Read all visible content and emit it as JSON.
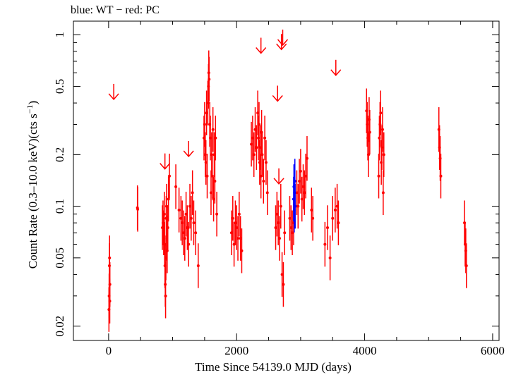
{
  "chart_data": {
    "type": "scatter",
    "title": "blue: WT − red: PC",
    "xlabel": "Time Since 54139.0 MJD (days)",
    "ylabel": "Count Rate (0.3–10.0 keV)(cts s",
    "ylabel_exp": "−1",
    "ylabel_tail": ")",
    "xlim": [
      -550,
      6100
    ],
    "ylim": [
      0.0165,
      1.2
    ],
    "yscale": "log",
    "x_ticks": [
      0,
      2000,
      4000,
      6000
    ],
    "x_tick_labels": [
      "0",
      "2000",
      "4000",
      "6000"
    ],
    "y_ticks": [
      1,
      0.5,
      0.2,
      0.1,
      0.05,
      0.02
    ],
    "y_tick_labels": [
      "1",
      "0.5",
      "0.2",
      "0.1",
      "0.05",
      "0.02"
    ],
    "colors": {
      "PC": "#ff0000",
      "WT": "#0000ff",
      "axes": "#000000"
    },
    "series": [
      {
        "name": "PC",
        "color": "#ff0000",
        "points": [
          [
            5,
            0.025
          ],
          [
            8,
            0.03
          ],
          [
            12,
            0.045
          ],
          [
            15,
            0.05
          ],
          [
            18,
            0.028
          ],
          [
            20,
            0.035
          ],
          [
            450,
            0.098
          ],
          [
            455,
            0.096
          ],
          [
            840,
            0.075
          ],
          [
            850,
            0.08
          ],
          [
            860,
            0.07
          ],
          [
            870,
            0.09
          ],
          [
            875,
            0.06
          ],
          [
            880,
            0.045
          ],
          [
            885,
            0.035
          ],
          [
            890,
            0.03
          ],
          [
            895,
            0.05
          ],
          [
            900,
            0.085
          ],
          [
            905,
            0.1
          ],
          [
            910,
            0.065
          ],
          [
            915,
            0.055
          ],
          [
            925,
            0.075
          ],
          [
            935,
            0.11
          ],
          [
            950,
            0.15
          ],
          [
            1050,
            0.13
          ],
          [
            1100,
            0.095
          ],
          [
            1130,
            0.085
          ],
          [
            1150,
            0.08
          ],
          [
            1170,
            0.07
          ],
          [
            1190,
            0.065
          ],
          [
            1210,
            0.09
          ],
          [
            1230,
            0.075
          ],
          [
            1250,
            0.06
          ],
          [
            1270,
            0.1
          ],
          [
            1290,
            0.085
          ],
          [
            1310,
            0.12
          ],
          [
            1330,
            0.08
          ],
          [
            1360,
            0.07
          ],
          [
            1400,
            0.045
          ],
          [
            1490,
            0.25
          ],
          [
            1500,
            0.3
          ],
          [
            1510,
            0.2
          ],
          [
            1520,
            0.18
          ],
          [
            1530,
            0.35
          ],
          [
            1540,
            0.15
          ],
          [
            1550,
            0.4
          ],
          [
            1560,
            0.5
          ],
          [
            1565,
            0.6
          ],
          [
            1570,
            0.55
          ],
          [
            1580,
            0.3
          ],
          [
            1590,
            0.25
          ],
          [
            1600,
            0.12
          ],
          [
            1610,
            0.2
          ],
          [
            1620,
            0.15
          ],
          [
            1630,
            0.28
          ],
          [
            1640,
            0.11
          ],
          [
            1650,
            0.2
          ],
          [
            1660,
            0.14
          ],
          [
            1670,
            0.25
          ],
          [
            1690,
            0.09
          ],
          [
            1920,
            0.07
          ],
          [
            1940,
            0.085
          ],
          [
            1960,
            0.06
          ],
          [
            1980,
            0.08
          ],
          [
            2000,
            0.075
          ],
          [
            2020,
            0.065
          ],
          [
            2040,
            0.09
          ],
          [
            2060,
            0.065
          ],
          [
            2080,
            0.055
          ],
          [
            2230,
            0.23
          ],
          [
            2250,
            0.25
          ],
          [
            2270,
            0.2
          ],
          [
            2290,
            0.28
          ],
          [
            2310,
            0.22
          ],
          [
            2330,
            0.35
          ],
          [
            2340,
            0.25
          ],
          [
            2350,
            0.3
          ],
          [
            2360,
            0.18
          ],
          [
            2370,
            0.22
          ],
          [
            2380,
            0.15
          ],
          [
            2390,
            0.27
          ],
          [
            2400,
            0.2
          ],
          [
            2420,
            0.14
          ],
          [
            2440,
            0.25
          ],
          [
            2460,
            0.18
          ],
          [
            2480,
            0.12
          ],
          [
            2610,
            0.075
          ],
          [
            2630,
            0.09
          ],
          [
            2650,
            0.08
          ],
          [
            2670,
            0.065
          ],
          [
            2690,
            0.1
          ],
          [
            2710,
            0.04
          ],
          [
            2730,
            0.035
          ],
          [
            2750,
            0.07
          ],
          [
            2830,
            0.085
          ],
          [
            2850,
            0.075
          ],
          [
            2870,
            0.07
          ],
          [
            2890,
            0.08
          ],
          [
            2940,
            0.12
          ],
          [
            2960,
            0.1
          ],
          [
            2980,
            0.14
          ],
          [
            3000,
            0.16
          ],
          [
            3020,
            0.11
          ],
          [
            3040,
            0.13
          ],
          [
            3060,
            0.12
          ],
          [
            3080,
            0.15
          ],
          [
            3100,
            0.19
          ],
          [
            3170,
            0.095
          ],
          [
            3190,
            0.085
          ],
          [
            3380,
            0.06
          ],
          [
            3420,
            0.075
          ],
          [
            3460,
            0.05
          ],
          [
            3500,
            0.085
          ],
          [
            3540,
            0.095
          ],
          [
            3570,
            0.1
          ],
          [
            3590,
            0.08
          ],
          [
            4030,
            0.36
          ],
          [
            4040,
            0.3
          ],
          [
            4050,
            0.25
          ],
          [
            4060,
            0.2
          ],
          [
            4070,
            0.32
          ],
          [
            4080,
            0.27
          ],
          [
            4220,
            0.15
          ],
          [
            4230,
            0.25
          ],
          [
            4240,
            0.3
          ],
          [
            4250,
            0.35
          ],
          [
            4260,
            0.18
          ],
          [
            4270,
            0.22
          ],
          [
            4280,
            0.28
          ],
          [
            4290,
            0.12
          ],
          [
            4300,
            0.2
          ],
          [
            5160,
            0.28
          ],
          [
            5170,
            0.22
          ],
          [
            5180,
            0.19
          ],
          [
            5190,
            0.15
          ],
          [
            5560,
            0.08
          ],
          [
            5570,
            0.06
          ],
          [
            5580,
            0.055
          ],
          [
            5590,
            0.045
          ]
        ]
      },
      {
        "name": "WT",
        "color": "#0000ff",
        "points": [
          [
            2890,
            0.11
          ],
          [
            2895,
            0.13
          ],
          [
            2900,
            0.095
          ],
          [
            2905,
            0.12
          ],
          [
            2910,
            0.14
          ],
          [
            2915,
            0.1
          ]
        ]
      }
    ],
    "upper_limits": [
      {
        "x": 80,
        "y": 0.42
      },
      {
        "x": 880,
        "y": 0.165
      },
      {
        "x": 1250,
        "y": 0.195
      },
      {
        "x": 2380,
        "y": 0.78
      },
      {
        "x": 2640,
        "y": 0.41
      },
      {
        "x": 2700,
        "y": 0.82
      },
      {
        "x": 2720,
        "y": 0.87
      },
      {
        "x": 3550,
        "y": 0.58
      },
      {
        "x": 2660,
        "y": 0.135
      }
    ]
  }
}
